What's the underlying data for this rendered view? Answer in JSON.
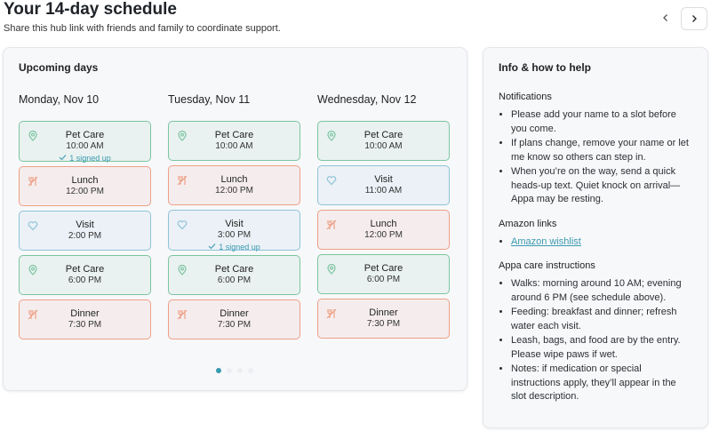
{
  "header": {
    "title": "Your 14-day schedule",
    "subtitle": "Share this hub link with friends and family to coordinate support."
  },
  "upcoming": {
    "title": "Upcoming days",
    "days": [
      {
        "label": "Monday, Nov 10",
        "slots": [
          {
            "name": "Pet Care",
            "time": "10:00 AM",
            "signed": "1 signed up",
            "color": "#7cc4a2",
            "icon": "pin"
          },
          {
            "name": "Lunch",
            "time": "12:00 PM",
            "color": "#ee9f86",
            "icon": "fork"
          },
          {
            "name": "Visit",
            "time": "2:00 PM",
            "color": "#8fc3d8",
            "icon": "heart"
          },
          {
            "name": "Pet Care",
            "time": "6:00 PM",
            "color": "#7cc4a2",
            "icon": "pin"
          },
          {
            "name": "Dinner",
            "time": "7:30 PM",
            "color": "#ee9f86",
            "icon": "fork"
          }
        ]
      },
      {
        "label": "Tuesday, Nov 11",
        "slots": [
          {
            "name": "Pet Care",
            "time": "10:00 AM",
            "color": "#7cc4a2",
            "icon": "pin"
          },
          {
            "name": "Lunch",
            "time": "12:00 PM",
            "color": "#ee9f86",
            "icon": "fork"
          },
          {
            "name": "Visit",
            "time": "3:00 PM",
            "signed": "1 signed up",
            "color": "#8fc3d8",
            "icon": "heart"
          },
          {
            "name": "Pet Care",
            "time": "6:00 PM",
            "color": "#7cc4a2",
            "icon": "pin"
          },
          {
            "name": "Dinner",
            "time": "7:30 PM",
            "color": "#ee9f86",
            "icon": "fork"
          }
        ]
      },
      {
        "label": "Wednesday, Nov 12",
        "slots": [
          {
            "name": "Pet Care",
            "time": "10:00 AM",
            "color": "#7cc4a2",
            "icon": "pin"
          },
          {
            "name": "Visit",
            "time": "11:00 AM",
            "color": "#8fc3d8",
            "icon": "heart"
          },
          {
            "name": "Lunch",
            "time": "12:00 PM",
            "color": "#ee9f86",
            "icon": "fork"
          },
          {
            "name": "Pet Care",
            "time": "6:00 PM",
            "color": "#7cc4a2",
            "icon": "pin"
          },
          {
            "name": "Dinner",
            "time": "7:30 PM",
            "color": "#ee9f86",
            "icon": "fork"
          }
        ]
      }
    ]
  },
  "info": {
    "title": "Info & how to help",
    "sections": [
      {
        "heading": "Notifications",
        "items": [
          "Please add your name to a slot before you come.",
          "If plans change, remove your name or let me know so others can step in.",
          "When you’re on the way, send a quick heads-up text. Quiet knock on arrival—Appa may be resting."
        ]
      },
      {
        "heading": "Amazon links",
        "links": [
          "Amazon wishlist"
        ]
      },
      {
        "heading": "Appa care instructions",
        "items": [
          "Walks: morning around 10 AM; evening around 6 PM (see schedule above).",
          "Feeding: breakfast and dinner; refresh water each visit.",
          "Leash, bags, and food are by the entry. Please wipe paws if wet.",
          "Notes: if medication or special instructions apply, they’ll appear in the slot description."
        ]
      }
    ]
  }
}
